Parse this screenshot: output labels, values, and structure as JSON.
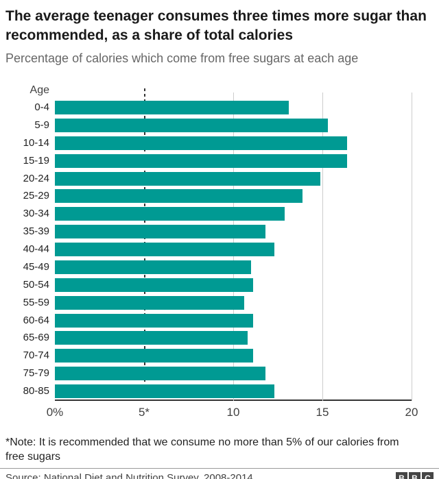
{
  "header": {
    "title": "The average teenager consumes three times more sugar than recommended, as a share of total calories",
    "subtitle": "Percentage of calories which come from free sugars at each age"
  },
  "chart_data": {
    "type": "bar",
    "orientation": "horizontal",
    "title": "The average teenager consumes three times more sugar than recommended, as a share of total calories",
    "subtitle": "Percentage of calories which come from free sugars at each age",
    "y_axis_header": "Age",
    "categories": [
      "0-4",
      "5-9",
      "10-14",
      "15-19",
      "20-24",
      "25-29",
      "30-34",
      "35-39",
      "40-44",
      "45-49",
      "50-54",
      "55-59",
      "60-64",
      "65-69",
      "70-74",
      "75-79",
      "80-85"
    ],
    "values": [
      13.1,
      15.3,
      16.4,
      16.4,
      14.9,
      13.9,
      12.9,
      11.8,
      12.3,
      11.0,
      11.1,
      10.6,
      11.1,
      10.8,
      11.1,
      11.8,
      12.3
    ],
    "xlim": [
      0,
      20
    ],
    "x_ticks": [
      {
        "value": 0,
        "label": "0%"
      },
      {
        "value": 5,
        "label": "5*"
      },
      {
        "value": 10,
        "label": "10"
      },
      {
        "value": 15,
        "label": "15"
      },
      {
        "value": 20,
        "label": "20"
      }
    ],
    "reference_line": {
      "value": 5,
      "style": "dashed",
      "color": "#333333"
    },
    "bar_color": "#009A93",
    "gridline_color": "#cccccc",
    "grid": true,
    "legend": false
  },
  "footnote": "*Note: It is recommended that we consume no more than 5% of our calories from free sugars",
  "source": "Source: National Diet and Nutrition Survey, 2008-2014",
  "logo": {
    "letters": [
      "B",
      "B",
      "C"
    ]
  }
}
